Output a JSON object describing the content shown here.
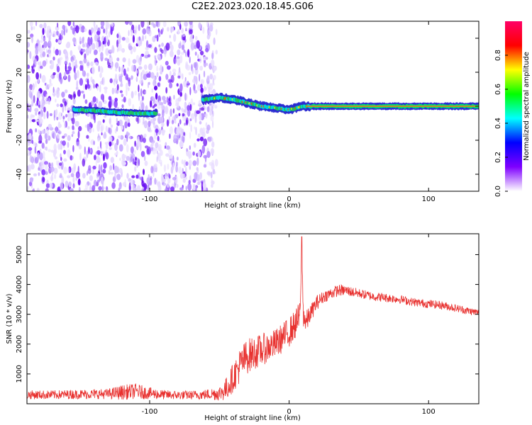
{
  "title": "C2E2.2023.020.18.45.G06",
  "chart_data": [
    {
      "type": "heatmap",
      "xlabel": "Height of straight line (km)",
      "ylabel": "Frequency (Hz)",
      "xlim": [
        -188,
        136
      ],
      "ylim": [
        -50,
        50
      ],
      "xticks": [
        -100,
        0,
        100
      ],
      "yticks": [
        -40,
        -20,
        0,
        20,
        40
      ],
      "grid": false,
      "noise_region": [
        -188,
        -52
      ],
      "signal_ridge": [
        {
          "x": -155,
          "y": -2
        },
        {
          "x": -140,
          "y": -2.5
        },
        {
          "x": -125,
          "y": -3.5
        },
        {
          "x": -110,
          "y": -4
        },
        {
          "x": -98,
          "y": -4.5
        },
        {
          "x": -60,
          "y": 4
        },
        {
          "x": -50,
          "y": 5
        },
        {
          "x": -40,
          "y": 4
        },
        {
          "x": -30,
          "y": 2
        },
        {
          "x": -20,
          "y": 0
        },
        {
          "x": -10,
          "y": -1
        },
        {
          "x": 0,
          "y": -2
        },
        {
          "x": 10,
          "y": 0
        },
        {
          "x": 30,
          "y": 0
        },
        {
          "x": 136,
          "y": 0
        }
      ],
      "colorbar": {
        "label": "Normalized spectral amplitude",
        "range": [
          0,
          1
        ],
        "ticks": [
          "0.0",
          "0.2",
          "0.4",
          "0.6",
          "0.8"
        ],
        "colors": [
          "#ffffff",
          "#7f00ff",
          "#0000ff",
          "#00ffff",
          "#00ff00",
          "#ffff00",
          "#ff0000",
          "#ff0066"
        ]
      }
    },
    {
      "type": "line",
      "xlabel": "Height of straight line (km)",
      "ylabel": "SNR (10 * v/v)",
      "xlim": [
        -188,
        136
      ],
      "ylim": [
        0,
        5700
      ],
      "xticks": [
        -100,
        0,
        100
      ],
      "yticks": [
        1000,
        2000,
        3000,
        4000,
        5000
      ],
      "grid": false,
      "series": [
        {
          "color": "#e8312f",
          "x": [
            -188,
            -170,
            -150,
            -130,
            -120,
            -110,
            -100,
            -90,
            -80,
            -70,
            -60,
            -50,
            -45,
            -40,
            -35,
            -30,
            -25,
            -20,
            -15,
            -10,
            -5,
            0,
            5,
            8,
            9,
            10,
            12,
            15,
            20,
            25,
            30,
            35,
            40,
            50,
            60,
            70,
            80,
            90,
            100,
            110,
            120,
            130,
            136
          ],
          "y": [
            300,
            300,
            320,
            330,
            380,
            420,
            350,
            300,
            290,
            290,
            310,
            350,
            500,
            900,
            1300,
            1600,
            1700,
            1800,
            1900,
            2000,
            2200,
            2400,
            2700,
            3000,
            5600,
            3100,
            2700,
            3000,
            3400,
            3600,
            3700,
            3800,
            3800,
            3700,
            3600,
            3550,
            3500,
            3400,
            3350,
            3300,
            3200,
            3100,
            3050
          ],
          "noise_amplitude": [
            150,
            150,
            160,
            170,
            250,
            260,
            200,
            160,
            150,
            150,
            170,
            250,
            400,
            500,
            600,
            600,
            550,
            550,
            500,
            500,
            500,
            500,
            500,
            500,
            0,
            500,
            400,
            300,
            250,
            200,
            200,
            200,
            180,
            160,
            150,
            150,
            140,
            140,
            140,
            140,
            130,
            130,
            130
          ]
        }
      ]
    }
  ]
}
